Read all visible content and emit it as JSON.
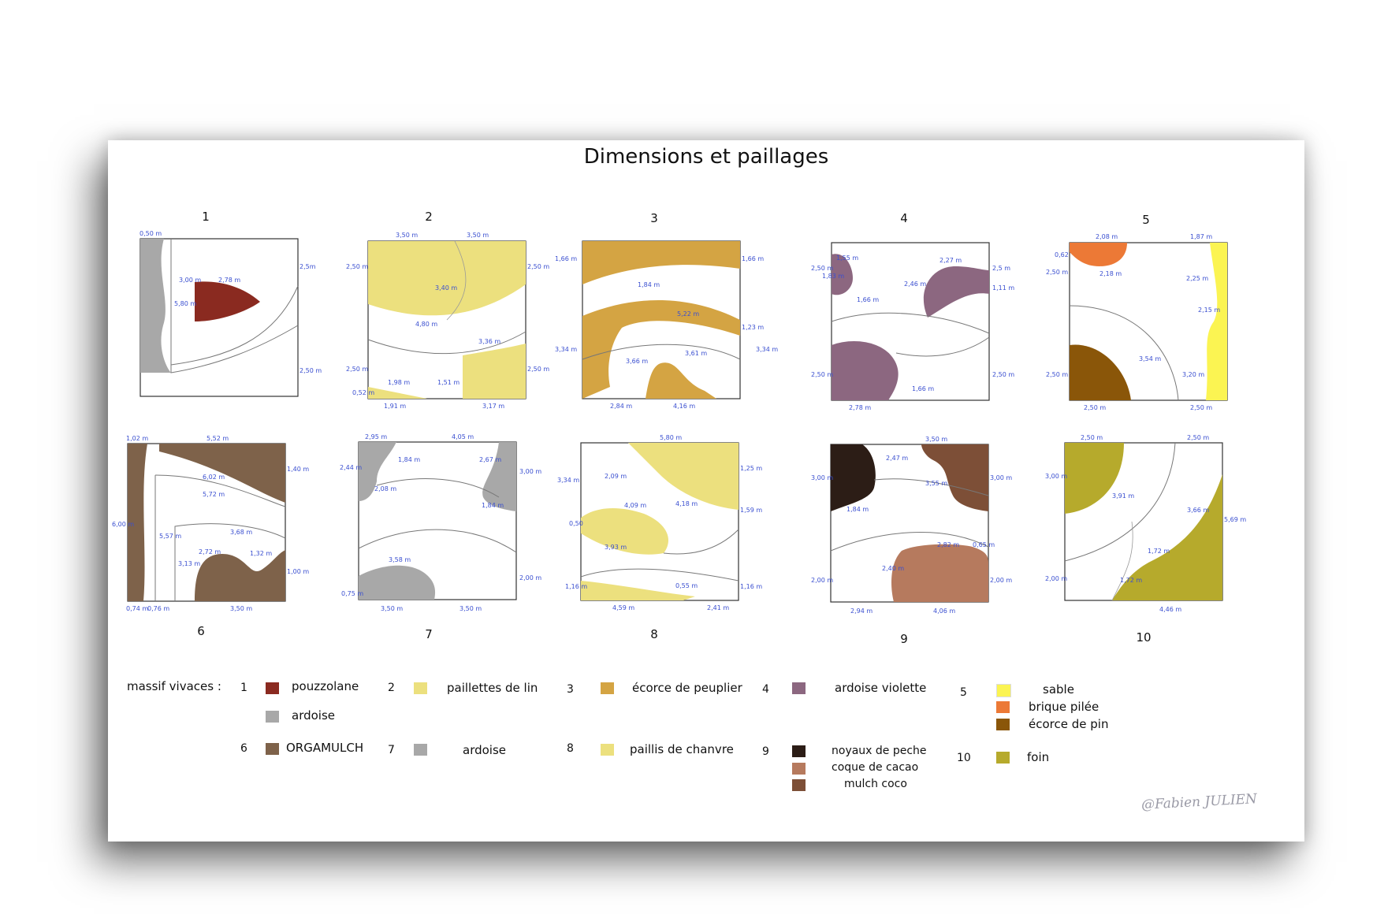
{
  "title": "Dimensions et paillages",
  "signature": "@Fabien JULIEN",
  "colors": {
    "pouzzolane": "#8a2a20",
    "ardoise_1": "#a8a8a8",
    "paillettes_de_lin": "#ece07e",
    "ecorce_de_peuplier": "#d4a443",
    "ardoise_violette": "#8c6780",
    "sable": "#fbf452",
    "brique_pilee": "#ec7936",
    "ecorce_de_pin": "#8a5609",
    "orgamulch": "#7e624a",
    "ardoise_7": "#a8a8a8",
    "paillis_de_chanvre": "#ece07e",
    "noyaux_de_peche": "#2c1d16",
    "coque_de_cacao": "#b67a5e",
    "mulch_coco": "#7d4f37",
    "foin": "#b6aa2c"
  },
  "panels": [
    {
      "number": "1",
      "dims": [
        "0,50 m",
        "2,78 m",
        "3,00 m",
        "5,80 m",
        "2,5m",
        "2,50 m"
      ]
    },
    {
      "number": "2",
      "dims": [
        "3,50 m",
        "3,50 m",
        "2,50 m",
        "2,50 m",
        "3,40 m",
        "4,80 m",
        "3,36 m",
        "2,50 m",
        "2,50 m",
        "1,98 m",
        "0,52 m",
        "1,51 m",
        "1,91 m",
        "3,17 m"
      ]
    },
    {
      "number": "3",
      "dims": [
        "1,66 m",
        "1,66 m",
        "1,84 m",
        "5,22 m",
        "1,23 m",
        "3,34 m",
        "3,34 m",
        "3,66 m",
        "3,61 m",
        "2,84 m",
        "4,16 m"
      ]
    },
    {
      "number": "4",
      "dims": [
        "2,50 m",
        "1,55 m",
        "1,83 m",
        "2,27 m",
        "2,5 m",
        "2,46 m",
        "1,11 m",
        "1,66 m",
        "2,50 m",
        "1,66 m",
        "2,50 m",
        "2,78 m"
      ]
    },
    {
      "number": "5",
      "dims": [
        "2,08 m",
        "1,87 m",
        "0,62",
        "2,50 m",
        "2,18 m",
        "2,25 m",
        "2,15 m",
        "3,54 m",
        "2,50 m",
        "3,20 m",
        "2,50 m",
        "2,50 m"
      ]
    },
    {
      "number": "6",
      "dims": [
        "1,02 m",
        "5,52 m",
        "1,40 m",
        "6,02 m",
        "5,72 m",
        "6,00 m",
        "5,57 m",
        "3,68 m",
        "3,13 m",
        "2,72 m",
        "1,32 m",
        "1,00 m",
        "0,74 m",
        "0,76 m",
        "3,50 m"
      ]
    },
    {
      "number": "7",
      "dims": [
        "2,95 m",
        "4,05 m",
        "2,44 m",
        "1,84 m",
        "2,67 m",
        "3,00 m",
        "2,08 m",
        "1,84 m",
        "3,58 m",
        "2,00 m",
        "0,75 m",
        "3,50 m",
        "3,50 m"
      ]
    },
    {
      "number": "8",
      "dims": [
        "5,80 m",
        "3,34 m",
        "1,25 m",
        "2,09 m",
        "4,09 m",
        "4,18 m",
        "1,59 m",
        "0,50",
        "3,93 m",
        "1,16 m",
        "0,55 m",
        "1,16 m",
        "4,59 m",
        "2,41 m"
      ]
    },
    {
      "number": "9",
      "dims": [
        "3,50 m",
        "2,47 m",
        "3,00 m",
        "3,55 m",
        "3,00 m",
        "1,84 m",
        "2,82 m",
        "0,65 m",
        "2,40 m",
        "2,00 m",
        "2,00 m",
        "2,94 m",
        "4,06 m"
      ]
    },
    {
      "number": "10",
      "dims": [
        "2,50 m",
        "2,50 m",
        "3,00 m",
        "3,91 m",
        "3,66 m",
        "5,69 m",
        "1,72 m",
        "2,00 m",
        "1,72 m",
        "4,46 m"
      ]
    }
  ],
  "legend": {
    "heading": "massif vivaces :",
    "groups": [
      {
        "number": "1",
        "items": [
          {
            "label": "pouzzolane",
            "color": "#8a2a20"
          },
          {
            "label": "ardoise",
            "color": "#a8a8a8"
          }
        ]
      },
      {
        "number": "2",
        "items": [
          {
            "label": "paillettes de lin",
            "color": "#ece07e"
          }
        ]
      },
      {
        "number": "3",
        "items": [
          {
            "label": "écorce de peuplier",
            "color": "#d4a443"
          }
        ]
      },
      {
        "number": "4",
        "items": [
          {
            "label": "ardoise violette",
            "color": "#8c6780"
          }
        ]
      },
      {
        "number": "5",
        "items": [
          {
            "label": "sable",
            "color": "#fbf452"
          },
          {
            "label": "brique pilée",
            "color": "#ec7936"
          },
          {
            "label": "écorce de pin",
            "color": "#8a5609"
          }
        ]
      },
      {
        "number": "6",
        "items": [
          {
            "label": "ORGAMULCH",
            "color": "#7e624a"
          }
        ]
      },
      {
        "number": "7",
        "items": [
          {
            "label": "ardoise",
            "color": "#a8a8a8"
          }
        ]
      },
      {
        "number": "8",
        "items": [
          {
            "label": "paillis de chanvre",
            "color": "#ece07e"
          }
        ]
      },
      {
        "number": "9",
        "items": [
          {
            "label": "noyaux de peche",
            "color": "#2c1d16"
          },
          {
            "label": "coque de cacao",
            "color": "#b67a5e"
          },
          {
            "label": "mulch coco",
            "color": "#7d4f37"
          }
        ]
      },
      {
        "number": "10",
        "items": [
          {
            "label": "foin",
            "color": "#b6aa2c"
          }
        ]
      }
    ]
  }
}
